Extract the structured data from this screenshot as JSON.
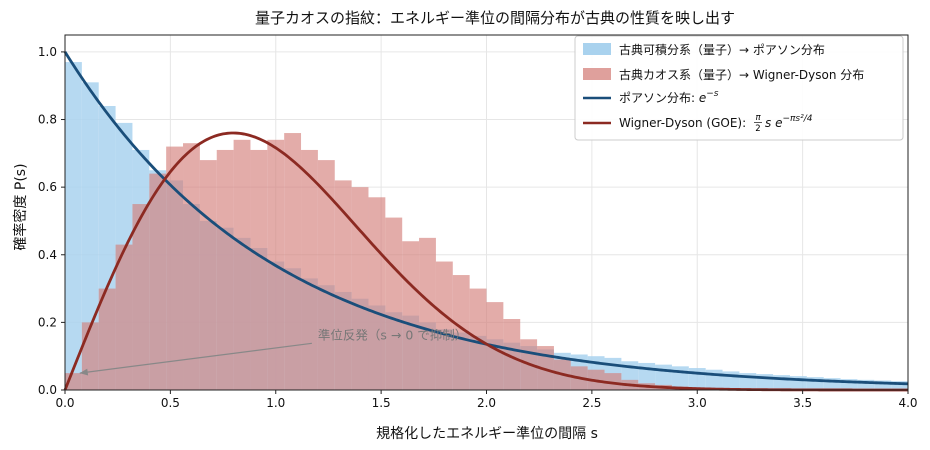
{
  "chart_data": {
    "type": "histogram-with-curves",
    "title": "量子カオスの指紋：エネルギー準位の間隔分布が古典の性質を映し出す",
    "xlabel": "規格化したエネルギー準位の間隔 s",
    "ylabel": "確率密度 P(s)",
    "xlim": [
      0,
      4.0
    ],
    "ylim": [
      0,
      1.05
    ],
    "xticks": [
      "0.0",
      "0.5",
      "1.0",
      "1.5",
      "2.0",
      "2.5",
      "3.0",
      "3.5",
      "4.0"
    ],
    "yticks": [
      "0.0",
      "0.2",
      "0.4",
      "0.6",
      "0.8",
      "1.0"
    ],
    "grid": true,
    "legend_position": "top-right",
    "bin_width": 0.08,
    "histograms": [
      {
        "name": "古典可積分系（量子）→ ポアソン分布",
        "color": "#a9d2ee",
        "values": [
          0.97,
          0.91,
          0.84,
          0.79,
          0.71,
          0.65,
          0.62,
          0.55,
          0.5,
          0.48,
          0.45,
          0.42,
          0.38,
          0.36,
          0.33,
          0.31,
          0.29,
          0.27,
          0.25,
          0.23,
          0.22,
          0.2,
          0.18,
          0.17,
          0.16,
          0.15,
          0.14,
          0.13,
          0.12,
          0.11,
          0.105,
          0.1,
          0.095,
          0.085,
          0.08,
          0.075,
          0.07,
          0.065,
          0.06,
          0.055,
          0.05,
          0.047,
          0.044,
          0.041,
          0.038,
          0.035,
          0.032,
          0.03,
          0.028,
          0.026
        ]
      },
      {
        "name": "古典カオス系（量子）→ Wigner-Dyson 分布",
        "color": "#d4807b",
        "values": [
          0.05,
          0.2,
          0.3,
          0.43,
          0.55,
          0.64,
          0.72,
          0.73,
          0.68,
          0.71,
          0.74,
          0.71,
          0.74,
          0.76,
          0.71,
          0.68,
          0.62,
          0.6,
          0.57,
          0.51,
          0.44,
          0.45,
          0.38,
          0.34,
          0.3,
          0.26,
          0.21,
          0.15,
          0.13,
          0.09,
          0.07,
          0.06,
          0.05,
          0.03,
          0.02,
          0.015,
          0.01,
          0.007,
          0.005,
          0.003
        ]
      }
    ],
    "curves": [
      {
        "name": "ポアソン分布: e^{-s}",
        "legend_label": "ポアソン分布: ",
        "legend_math": "e",
        "legend_sup": "−s",
        "color": "#1a4e7a",
        "formula": "exp(-s)"
      },
      {
        "name": "Wigner-Dyson (GOE): (π/2) s e^{-π s²/4}",
        "legend_label": "Wigner-Dyson (GOE): ",
        "legend_frac_num": "π",
        "legend_frac_den": "2",
        "legend_math": "s e",
        "legend_sup": "−πs²/4",
        "color": "#8c2a22",
        "formula": "(pi/2)*s*exp(-pi*s^2/4)"
      }
    ],
    "annotation": {
      "text": "準位反発（s → 0 で抑制）",
      "arrow_to": [
        0.07,
        0.05
      ],
      "text_at": [
        1.2,
        0.15
      ]
    }
  }
}
